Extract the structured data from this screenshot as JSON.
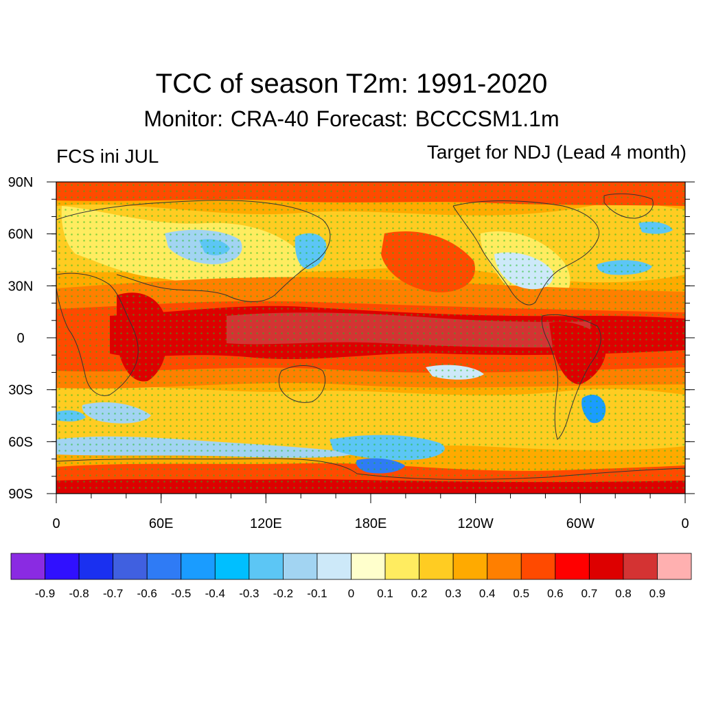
{
  "header": {
    "title": "TCC of season T2m: 1991-2020",
    "subtitle": "Monitor: CRA-40   Forecast: BCCCSM1.1m",
    "left_label": "FCS ini JUL",
    "right_label": "Target for NDJ (Lead 4 month)"
  },
  "map": {
    "projection": "cylindrical-equidistant",
    "lon_range": [
      0,
      360
    ],
    "lat_range": [
      -90,
      90
    ],
    "lat_ticks": [
      {
        "value": 90,
        "label": "90N"
      },
      {
        "value": 60,
        "label": "60N"
      },
      {
        "value": 30,
        "label": "30N"
      },
      {
        "value": 0,
        "label": "0"
      },
      {
        "value": -30,
        "label": "30S"
      },
      {
        "value": -60,
        "label": "60S"
      },
      {
        "value": -90,
        "label": "90S"
      }
    ],
    "lon_ticks": [
      {
        "value": 0,
        "label": "0"
      },
      {
        "value": 60,
        "label": "60E"
      },
      {
        "value": 120,
        "label": "120E"
      },
      {
        "value": 180,
        "label": "180E"
      },
      {
        "value": 240,
        "label": "120W"
      },
      {
        "value": 300,
        "label": "60W"
      },
      {
        "value": 360,
        "label": "0"
      }
    ],
    "significance_dot_color": "#22bb22",
    "coastline_color": "#333333"
  },
  "colorbar": {
    "colors": [
      "#8a2be2",
      "#3010ff",
      "#1a30f0",
      "#4060e0",
      "#2f7bf5",
      "#1a9cff",
      "#00bfff",
      "#5cc6f5",
      "#a2d4f2",
      "#cde9f9",
      "#ffffcc",
      "#ffec60",
      "#ffcc22",
      "#ffaa00",
      "#ff7f00",
      "#ff4a00",
      "#ff0000",
      "#dd0000",
      "#d43333",
      "#ffb0b0"
    ],
    "labels": [
      "-0.9",
      "-0.8",
      "-0.7",
      "-0.6",
      "-0.5",
      "-0.4",
      "-0.3",
      "-0.2",
      "-0.1",
      "0",
      "0.1",
      "0.2",
      "0.3",
      "0.4",
      "0.5",
      "0.6",
      "0.7",
      "0.8",
      "0.9"
    ]
  }
}
